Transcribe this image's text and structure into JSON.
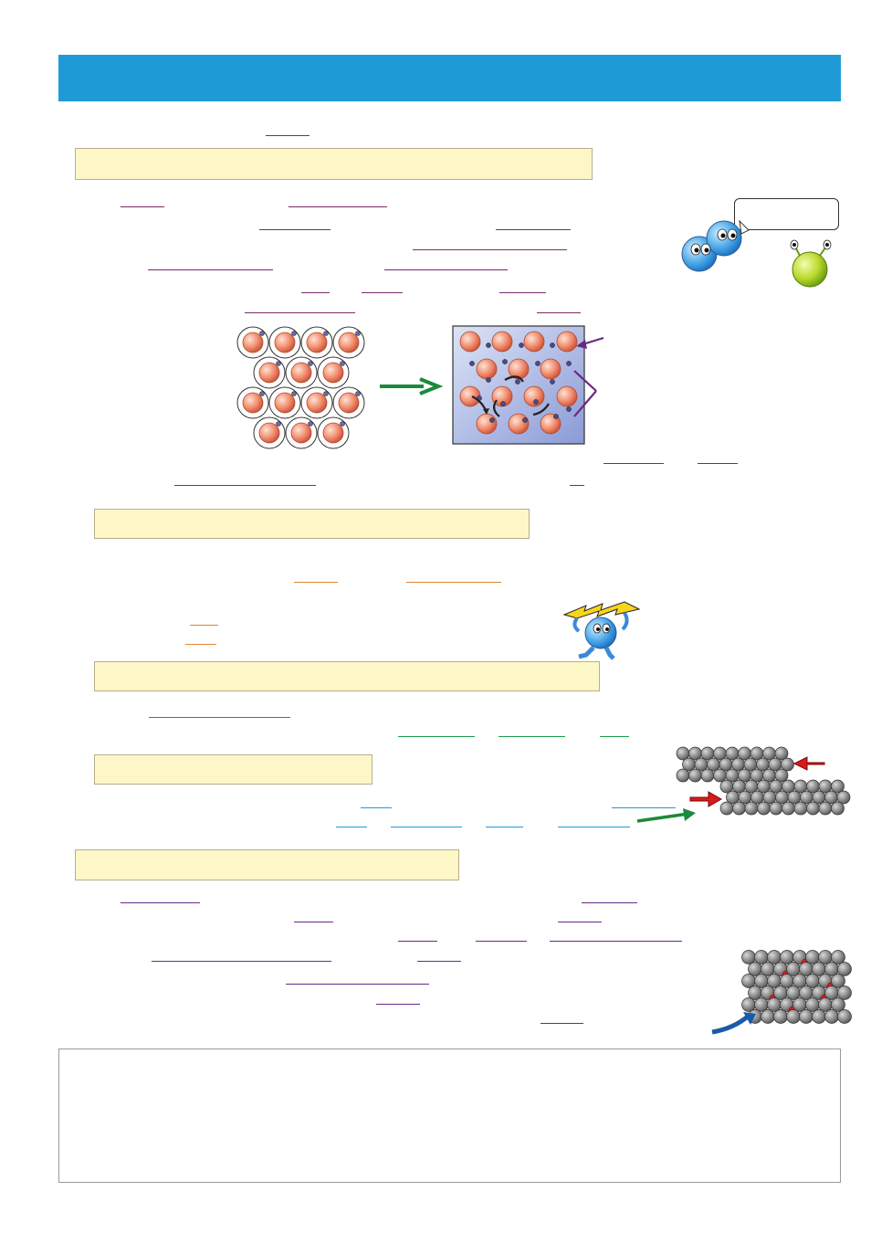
{
  "header": {
    "title": ""
  },
  "sections": [
    {
      "box_label": ""
    },
    {
      "box_label": ""
    },
    {
      "box_label": ""
    },
    {
      "box_label": ""
    },
    {
      "box_label": ""
    }
  ],
  "speech_bubble": {
    "text": ""
  },
  "footer": {
    "text": ""
  },
  "colors": {
    "banner": "#1e9bd7",
    "box_fill": "#fdf7c8",
    "blank_purple": "#7a2a6c",
    "blank_orange": "#e0852c",
    "blank_green": "#1a9a4a",
    "blank_blue": "#1e9bd7"
  },
  "icons": [
    "electron-sea-diagram",
    "cartoon-atoms",
    "lightning-carrier-atom",
    "atomic-layers-slip",
    "alloy-lattice"
  ]
}
